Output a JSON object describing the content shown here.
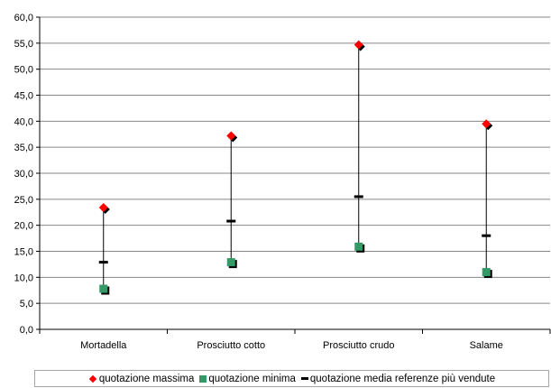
{
  "colors": {
    "max": "#ff0000",
    "min": "#339966",
    "avg": "#000000",
    "shadow": "#000000",
    "grid": "#868686"
  },
  "chart_data": {
    "type": "scatter",
    "title": "",
    "xlabel": "",
    "ylabel": "",
    "categories": [
      "Mortadella",
      "Prosciutto cotto",
      "Prosciutto crudo",
      "Salame"
    ],
    "ylim": [
      0,
      60
    ],
    "ytick_step": 5,
    "ytick_labels": [
      "0,0",
      "5,0",
      "10,0",
      "15,0",
      "20,0",
      "25,0",
      "30,0",
      "35,0",
      "40,0",
      "45,0",
      "50,0",
      "55,0",
      "60,0"
    ],
    "grid": true,
    "legend_position": "bottom",
    "series": [
      {
        "name": "quotazione massima",
        "marker": "diamond",
        "values": [
          23.4,
          37.2,
          54.7,
          39.5
        ]
      },
      {
        "name": "quotazione minima",
        "marker": "square",
        "values": [
          7.8,
          12.9,
          15.9,
          11.0
        ]
      },
      {
        "name": "quotazione media referenze più vendute",
        "marker": "dash",
        "values": [
          12.9,
          20.8,
          25.5,
          18.0
        ]
      }
    ]
  }
}
